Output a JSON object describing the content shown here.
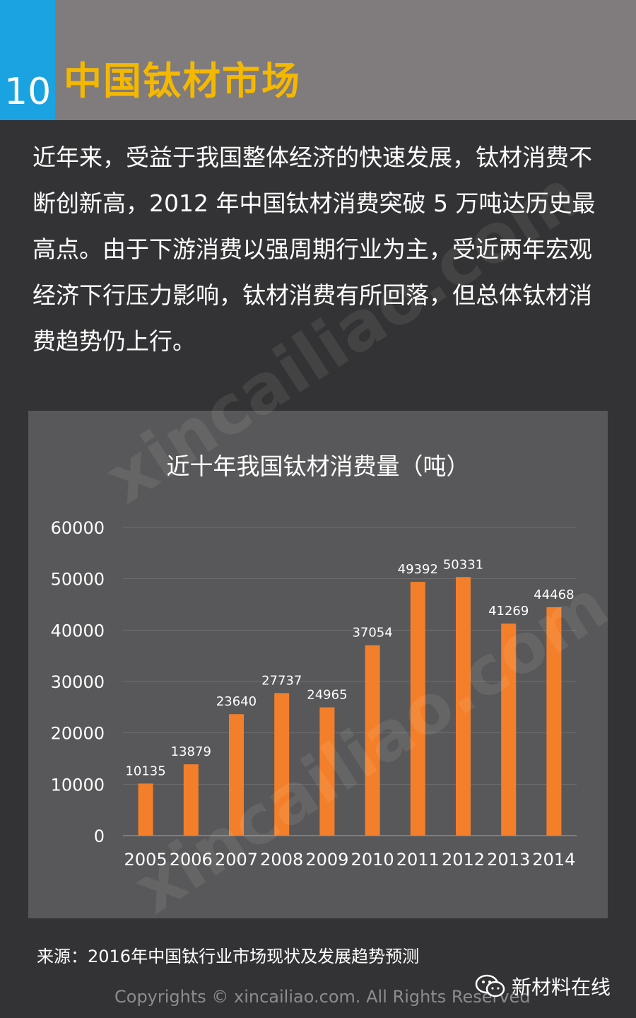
{
  "header": {
    "number": "10",
    "title": "中国钛材市场"
  },
  "intro_text": "近年来，受益于我国整体经济的快速发展，钛材消费不断创新高，2012 年中国钛材消费突破 5 万吨达历史最高点。由于下游消费以强周期行业为主，受近两年宏观经济下行压力影响，钛材消费有所回落，但总体钛材消费趋势仍上行。",
  "watermark": {
    "text": "xincailiao.com",
    "stamp_text": "新材料在线",
    "stamp_url": "xincailiao.com"
  },
  "chart_data": {
    "type": "bar",
    "title": "近十年我国钛材消费量（吨）",
    "categories": [
      "2005",
      "2006",
      "2007",
      "2008",
      "2009",
      "2010",
      "2011",
      "2012",
      "2013",
      "2014"
    ],
    "values": [
      10135,
      13879,
      23640,
      27737,
      24965,
      37054,
      49392,
      50331,
      41269,
      44468
    ],
    "ylim": [
      0,
      60000
    ],
    "yticks": [
      "0",
      "10000",
      "20000",
      "30000",
      "40000",
      "50000",
      "60000"
    ],
    "grid": true,
    "legend": "none",
    "colors": {
      "bar": "#f47f2a",
      "grid": "#6e6e70",
      "text": "#ffffff"
    }
  },
  "source": "来源：2016年中国钛行业市场现状及发展趋势预测",
  "copyright": "Copyrights © xincailiao.com. All Rights Reserved",
  "brand": {
    "icon": "wechat-icon",
    "label": "新材料在线"
  }
}
